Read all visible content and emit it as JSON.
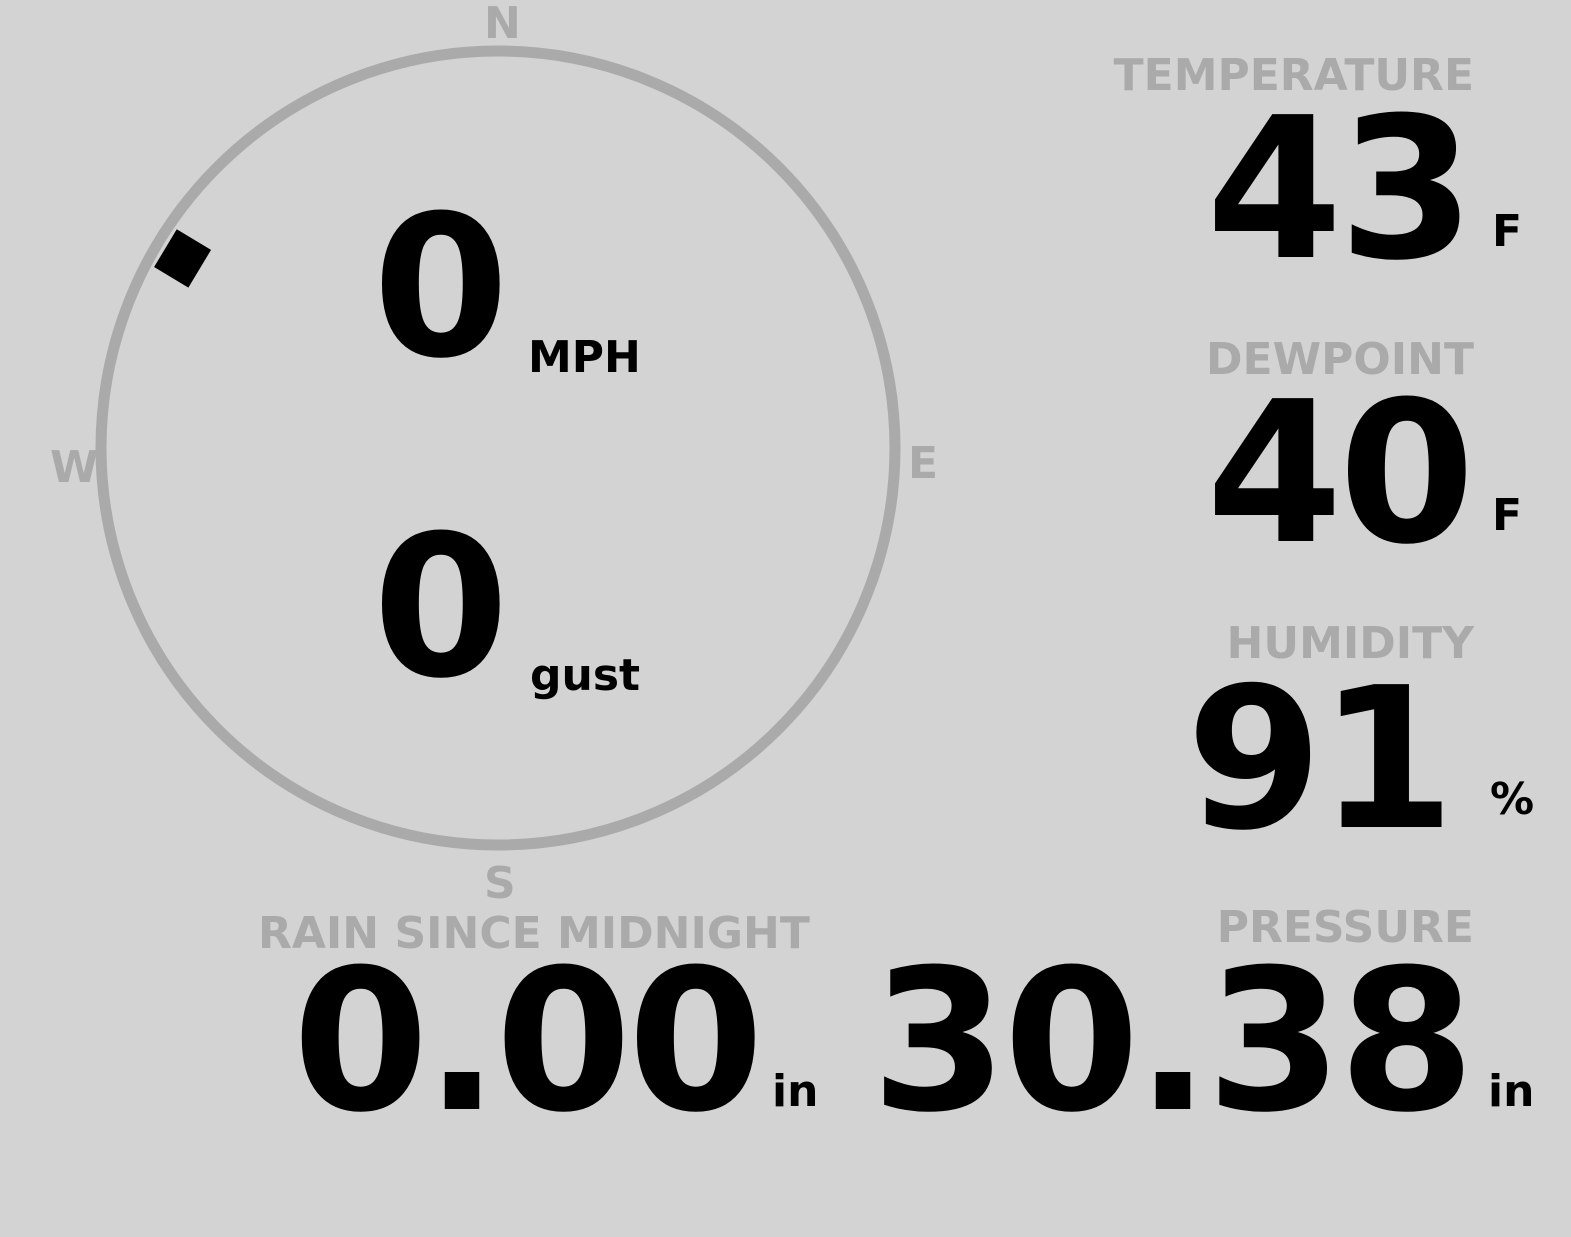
{
  "colors": {
    "background": "#d3d3d3",
    "label": "#aaaaaa",
    "value": "#000000"
  },
  "wind": {
    "cardinals": {
      "n": "N",
      "e": "E",
      "s": "S",
      "w": "W"
    },
    "direction_deg": 301,
    "speed": "0",
    "speed_unit": "MPH",
    "gust": "0",
    "gust_unit": "gust"
  },
  "temperature": {
    "label": "TEMPERATURE",
    "value": "43",
    "unit": "F"
  },
  "dewpoint": {
    "label": "DEWPOINT",
    "value": "40",
    "unit": "F"
  },
  "humidity": {
    "label": "HUMIDITY",
    "value": "91",
    "unit": "%"
  },
  "rain": {
    "label": "RAIN SINCE MIDNIGHT",
    "value": "0.00",
    "unit": "in"
  },
  "pressure": {
    "label": "PRESSURE",
    "value": "30.38",
    "unit": "in"
  }
}
